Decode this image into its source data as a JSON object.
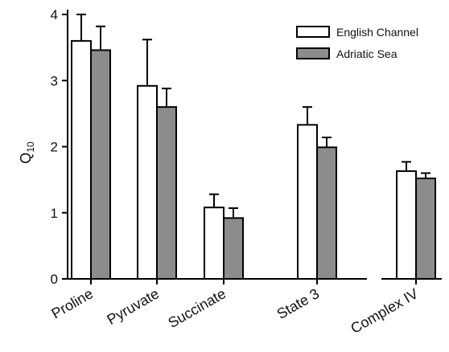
{
  "chart_data": {
    "type": "bar",
    "title": "",
    "ylabel": {
      "main": "Q",
      "subscript": "10"
    },
    "xlabel": "",
    "ylim": [
      0,
      4
    ],
    "yticks": [
      "0",
      "1",
      "2",
      "3",
      "4"
    ],
    "categories": [
      "Proline",
      "Pyruvate",
      "Succinate",
      "State 3",
      "Complex IV"
    ],
    "axis_break_before_category": "Complex IV",
    "legend_position": "top-right",
    "series": [
      {
        "name": "English Channel",
        "color": "#ffffff",
        "values": [
          3.6,
          2.92,
          1.08,
          2.33,
          1.63
        ],
        "errors": [
          0.4,
          0.7,
          0.2,
          0.27,
          0.14
        ]
      },
      {
        "name": "Adriatic Sea",
        "color": "#8c8c8c",
        "values": [
          3.46,
          2.6,
          0.92,
          1.99,
          1.52
        ],
        "errors": [
          0.36,
          0.28,
          0.15,
          0.15,
          0.08
        ]
      }
    ]
  }
}
